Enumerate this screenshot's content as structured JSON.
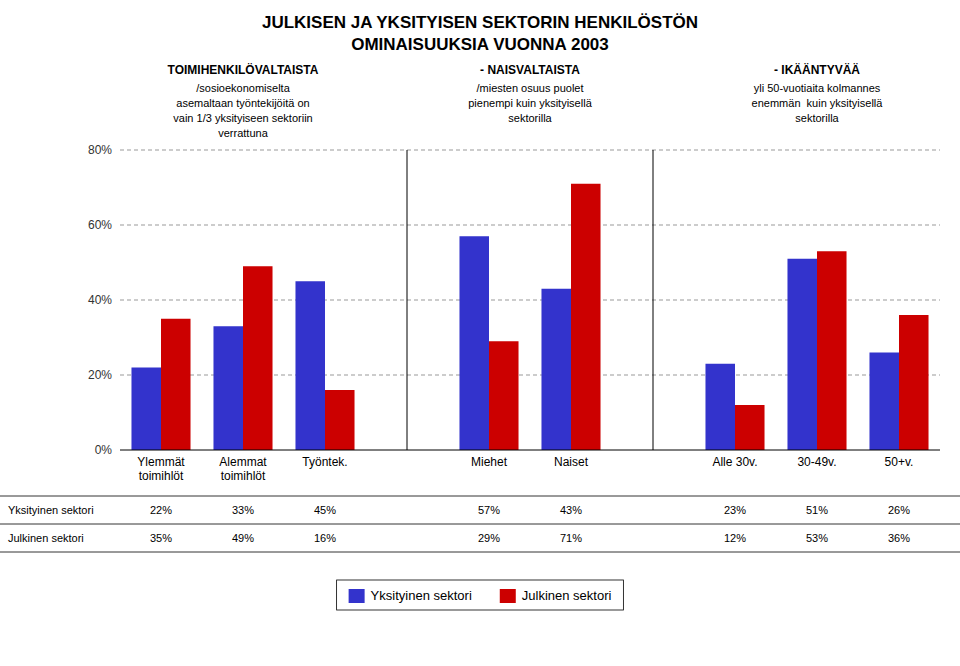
{
  "chart_data": {
    "type": "bar",
    "title": "JULKISEN JA YKSITYISEN SEKTORIN HENKILÖSTÖN",
    "subtitle": "OMINAISUUKSIA VUONNA 2003",
    "categories": [
      "Ylemmät\ntoimihlöt",
      "Alemmat\ntoimihlöt",
      "Työntek.",
      null,
      "Miehet",
      "Naiset",
      null,
      "Alle 30v.",
      "30-49v.",
      "50+v."
    ],
    "series": [
      {
        "name": "Yksityinen sektori",
        "color": "#3333CC",
        "values": [
          22,
          33,
          45,
          null,
          57,
          43,
          null,
          23,
          51,
          26
        ],
        "value_labels": [
          "22%",
          "33%",
          "45%",
          null,
          "57%",
          "43%",
          null,
          "23%",
          "51%",
          "26%"
        ]
      },
      {
        "name": "Julkinen sektori",
        "color": "#CC0000",
        "values": [
          35,
          49,
          16,
          null,
          29,
          71,
          null,
          12,
          53,
          36
        ],
        "value_labels": [
          "35%",
          "49%",
          "16%",
          null,
          "29%",
          "71%",
          null,
          "12%",
          "53%",
          "36%"
        ]
      }
    ],
    "ylim": [
      0,
      80
    ],
    "yticks": [
      {
        "value": 0,
        "label": "0%"
      },
      {
        "value": 20,
        "label": "20%"
      },
      {
        "value": 40,
        "label": "40%"
      },
      {
        "value": 60,
        "label": "60%"
      },
      {
        "value": 80,
        "label": "80%"
      }
    ],
    "grid": true,
    "legend": "bottom",
    "data_labels": true,
    "annotations": [
      {
        "header": "TOIMIHENKILÖVALTAISTA",
        "text": "/sosioekonomiselta\nasemaltaan työntekijöitä on\nvain 1/3 yksityiseen sektoriin\nverrattuna"
      },
      {
        "header": "- NAISVALTAISTA",
        "text": "/miesten osuus puolet\npienempi kuin yksityisellä\nsektorilla"
      },
      {
        "header": "- IKÄÄNTYVÄÄ",
        "text": "yli 50-vuotiaita kolmannes\nenemmän  kuin yksityisellä\nsektorilla"
      }
    ]
  }
}
